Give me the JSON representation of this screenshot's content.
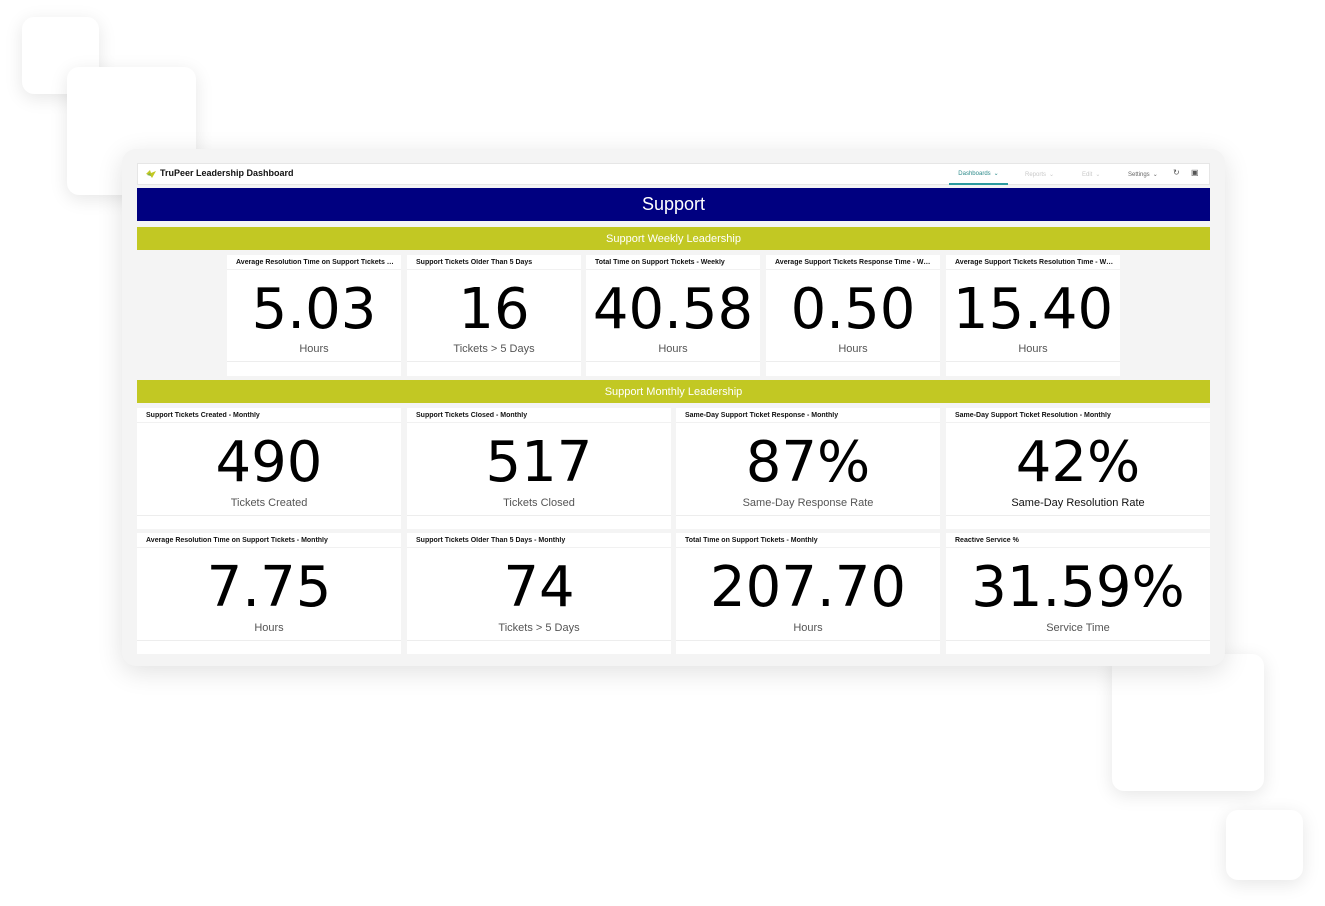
{
  "header": {
    "title": "TruPeer Leadership Dashboard",
    "nav": [
      {
        "label": "Dashboards",
        "state": "active"
      },
      {
        "label": "Reports",
        "state": "faded"
      },
      {
        "label": "Edit",
        "state": "faded"
      },
      {
        "label": "Settings",
        "state": "normal"
      }
    ],
    "icons": [
      "logo-icon",
      "refresh-icon",
      "comment-icon"
    ]
  },
  "banner": {
    "title": "Support"
  },
  "weekly": {
    "title": "Support Weekly Leadership",
    "cards": [
      {
        "title": "Average Resolution Time on Support Tickets - Weekly",
        "value": "5.03",
        "unit": "Hours"
      },
      {
        "title": "Support Tickets Older Than 5 Days",
        "value": "16",
        "unit": "Tickets > 5 Days"
      },
      {
        "title": "Total Time on Support Tickets - Weekly",
        "value": "40.58",
        "unit": "Hours"
      },
      {
        "title": "Average Support Tickets Response Time - Weekly",
        "value": "0.50",
        "unit": "Hours"
      },
      {
        "title": "Average Support Tickets Resolution Time - Weekly",
        "value": "15.40",
        "unit": "Hours"
      }
    ]
  },
  "monthly": {
    "title": "Support Monthly Leadership",
    "cards": [
      {
        "title": "Support Tickets Created - Monthly",
        "value": "490",
        "unit": "Tickets Created"
      },
      {
        "title": "Support Tickets Closed - Monthly",
        "value": "517",
        "unit": "Tickets Closed"
      },
      {
        "title": "Same-Day Support Ticket Response - Monthly",
        "value": "87%",
        "unit": "Same-Day Response Rate"
      },
      {
        "title": "Same-Day Support Ticket Resolution - Monthly",
        "value": "42%",
        "unit": "Same-Day Resolution Rate"
      },
      {
        "title": "Average Resolution Time on Support Tickets - Monthly",
        "value": "7.75",
        "unit": "Hours"
      },
      {
        "title": "Support Tickets Older Than 5 Days - Monthly",
        "value": "74",
        "unit": "Tickets > 5 Days"
      },
      {
        "title": "Total Time on Support Tickets - Monthly",
        "value": "207.70",
        "unit": "Hours"
      },
      {
        "title": "Reactive Service %",
        "value": "31.59%",
        "unit": "Service Time"
      }
    ]
  },
  "colors": {
    "banner": "#000080",
    "section": "#c2c823",
    "accent": "#2b9aa0"
  }
}
